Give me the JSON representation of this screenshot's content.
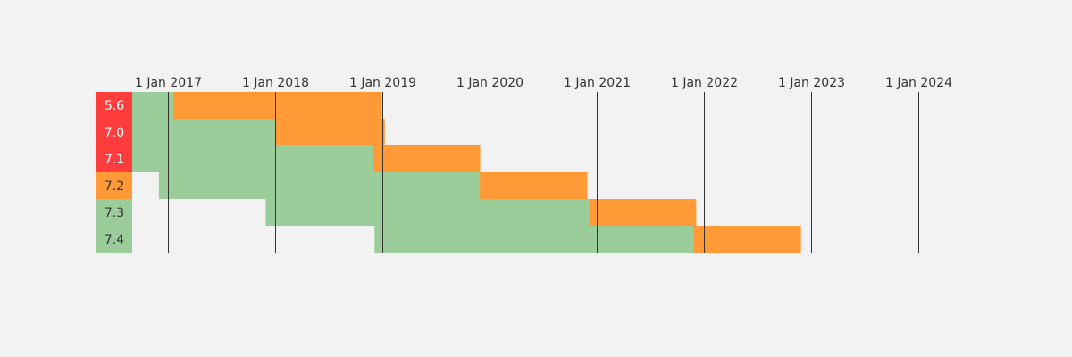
{
  "chart_data": {
    "type": "gantt",
    "x_axis": {
      "type": "date",
      "range": [
        "2016-09-01",
        "2024-02-01"
      ],
      "ticks": [
        {
          "date": "2017-01-01",
          "label": "1 Jan 2017"
        },
        {
          "date": "2018-01-01",
          "label": "1 Jan 2018"
        },
        {
          "date": "2019-01-01",
          "label": "1 Jan 2019"
        },
        {
          "date": "2020-01-01",
          "label": "1 Jan 2020"
        },
        {
          "date": "2021-01-01",
          "label": "1 Jan 2021"
        },
        {
          "date": "2022-01-01",
          "label": "1 Jan 2022"
        },
        {
          "date": "2023-01-01",
          "label": "1 Jan 2023"
        },
        {
          "date": "2024-01-01",
          "label": "1 Jan 2024"
        }
      ],
      "gridlines": true
    },
    "phase_colors": {
      "active": "#9acd99",
      "security": "#ff9a37"
    },
    "status_colors": {
      "eol": "#ff3d3d",
      "security": "#ff9a37",
      "active": "#9acd99"
    },
    "status_text_colors": {
      "eol": "#ffffff",
      "security": "#333333",
      "active": "#333333"
    },
    "rows": [
      {
        "version": "5.6",
        "status": "eol",
        "active": [
          "2014-08-28",
          "2017-01-19"
        ],
        "security": [
          "2017-01-19",
          "2018-12-31"
        ]
      },
      {
        "version": "7.0",
        "status": "eol",
        "active": [
          "2015-12-03",
          "2018-01-04"
        ],
        "security": [
          "2018-01-04",
          "2019-01-10"
        ]
      },
      {
        "version": "7.1",
        "status": "eol",
        "active": [
          "2016-12-01",
          "2018-12-01"
        ],
        "security": [
          "2018-12-01",
          "2019-12-01"
        ]
      },
      {
        "version": "7.2",
        "status": "security",
        "active": [
          "2017-11-30",
          "2019-11-30"
        ],
        "security": [
          "2019-11-30",
          "2020-11-30"
        ]
      },
      {
        "version": "7.3",
        "status": "active",
        "active": [
          "2018-12-06",
          "2020-12-06"
        ],
        "security": [
          "2020-12-06",
          "2021-12-06"
        ]
      },
      {
        "version": "7.4",
        "status": "active",
        "active": [
          "2019-11-28",
          "2021-11-28"
        ],
        "security": [
          "2021-11-28",
          "2022-11-28"
        ]
      }
    ]
  }
}
